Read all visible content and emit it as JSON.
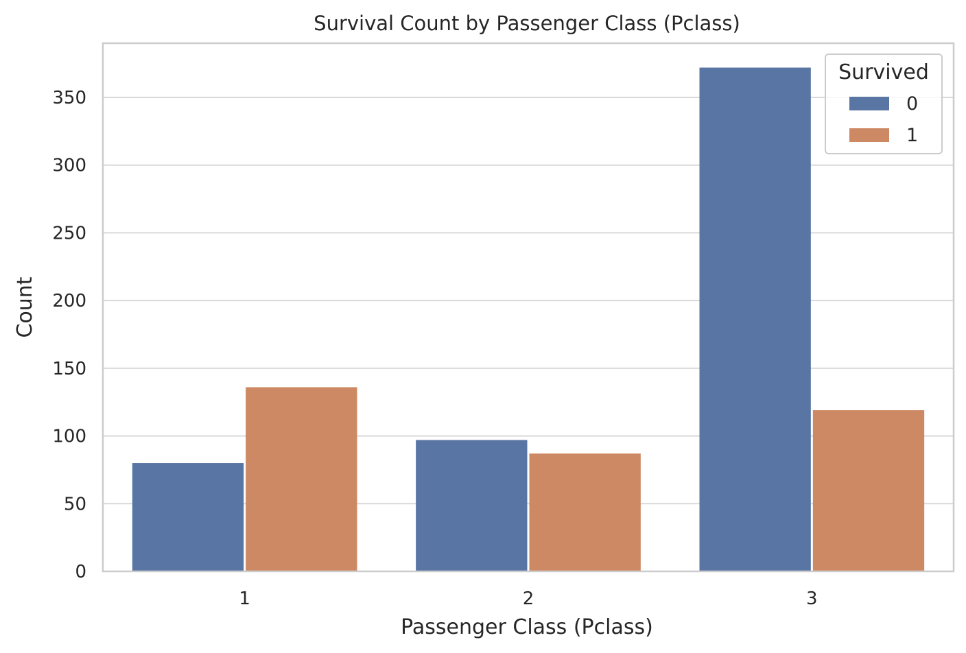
{
  "chart_data": {
    "type": "bar",
    "title": "Survival Count by Passenger Class (Pclass)",
    "xlabel": "Passenger Class (Pclass)",
    "ylabel": "Count",
    "categories": [
      "1",
      "2",
      "3"
    ],
    "series": [
      {
        "name": "0",
        "values": [
          80,
          97,
          372
        ],
        "color": "#5975a4"
      },
      {
        "name": "1",
        "values": [
          136,
          87,
          119
        ],
        "color": "#cc8963"
      }
    ],
    "ylim": [
      0,
      390
    ],
    "yticks": [
      0,
      50,
      100,
      150,
      200,
      250,
      300,
      350
    ],
    "grid": "horizontal",
    "legend": {
      "title": "Survived",
      "position": "top-right"
    }
  }
}
